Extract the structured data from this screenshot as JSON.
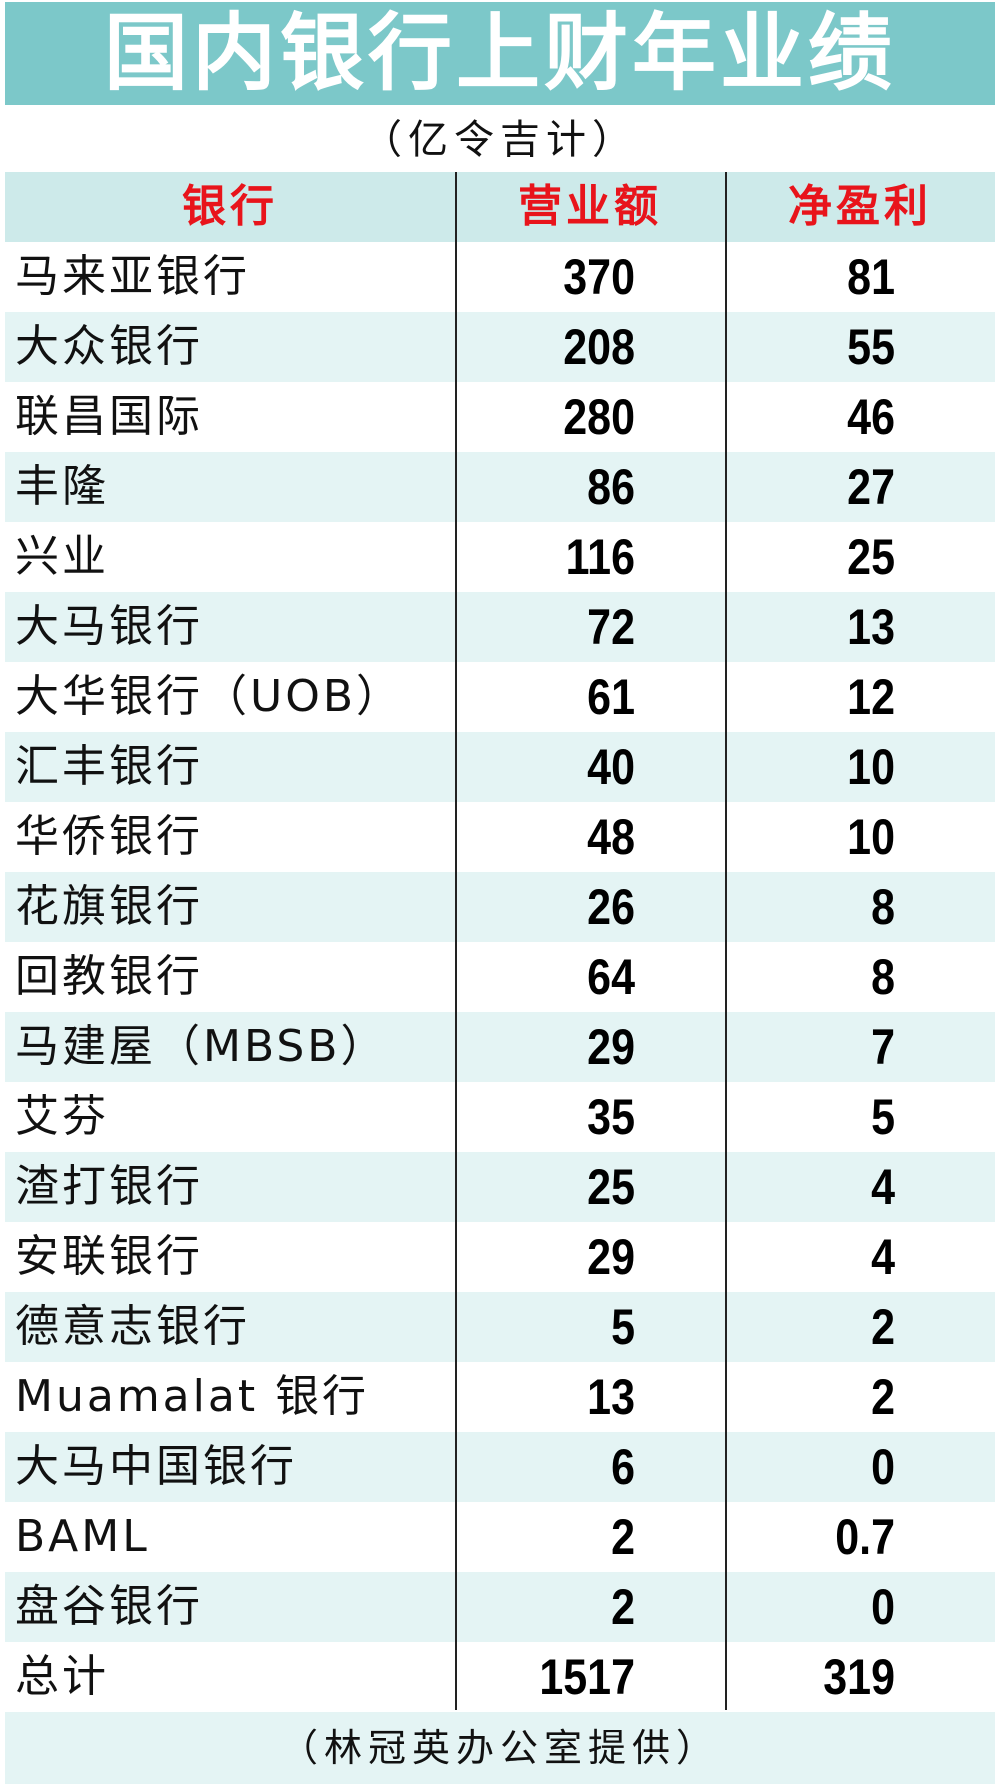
{
  "title": "国内银行上财年业绩",
  "unit_note": "（亿令吉计）",
  "headers": {
    "bank": "银行",
    "revenue": "营业额",
    "net_profit": "净盈利"
  },
  "rows": [
    {
      "bank": "马来亚银行",
      "revenue": "370",
      "net_profit": "81"
    },
    {
      "bank": "大众银行",
      "revenue": "208",
      "net_profit": "55"
    },
    {
      "bank": "联昌国际",
      "revenue": "280",
      "net_profit": "46"
    },
    {
      "bank": "丰隆",
      "revenue": "86",
      "net_profit": "27"
    },
    {
      "bank": "兴业",
      "revenue": "116",
      "net_profit": "25"
    },
    {
      "bank": "大马银行",
      "revenue": "72",
      "net_profit": "13"
    },
    {
      "bank": "大华银行（UOB）",
      "revenue": "61",
      "net_profit": "12"
    },
    {
      "bank": "汇丰银行",
      "revenue": "40",
      "net_profit": "10"
    },
    {
      "bank": "华侨银行",
      "revenue": "48",
      "net_profit": "10"
    },
    {
      "bank": "花旗银行",
      "revenue": "26",
      "net_profit": "8"
    },
    {
      "bank": "回教银行",
      "revenue": "64",
      "net_profit": "8"
    },
    {
      "bank": "马建屋（MBSB）",
      "revenue": "29",
      "net_profit": "7"
    },
    {
      "bank": "艾芬",
      "revenue": "35",
      "net_profit": "5"
    },
    {
      "bank": "渣打银行",
      "revenue": "25",
      "net_profit": "4"
    },
    {
      "bank": "安联银行",
      "revenue": "29",
      "net_profit": "4"
    },
    {
      "bank": "德意志银行",
      "revenue": "5",
      "net_profit": "2"
    },
    {
      "bank": "Muamalat 银行",
      "revenue": "13",
      "net_profit": "2"
    },
    {
      "bank": "大马中国银行",
      "revenue": "6",
      "net_profit": "0"
    },
    {
      "bank": "BAML",
      "revenue": "2",
      "net_profit": "0.7"
    },
    {
      "bank": "盘谷银行",
      "revenue": "2",
      "net_profit": "0"
    }
  ],
  "total": {
    "bank": "总计",
    "revenue": "1517",
    "net_profit": "319"
  },
  "footer": "（林冠英办公室提供）",
  "colors": {
    "title_bg": "#7cc8c9",
    "header_bg": "#cdeaea",
    "row_shade": "#e4f4f4",
    "header_text": "#e8141b"
  }
}
